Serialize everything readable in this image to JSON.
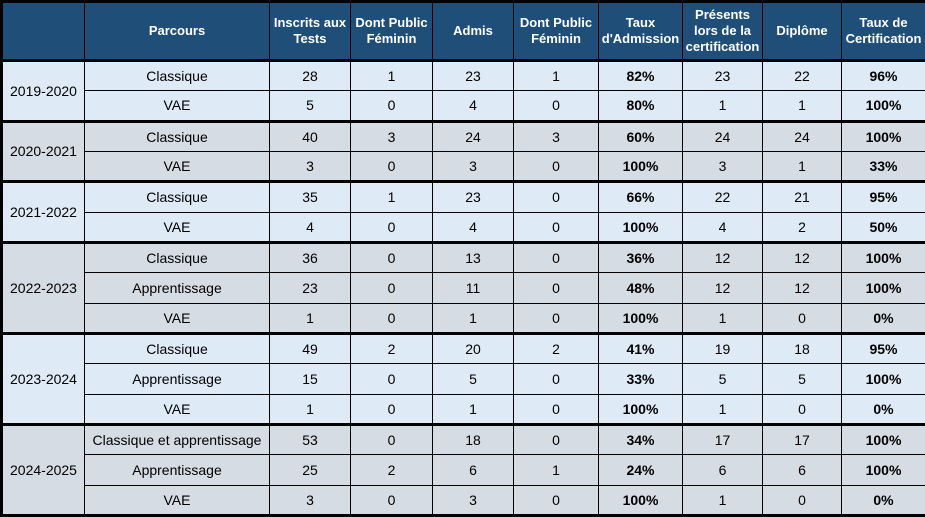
{
  "colors": {
    "header_bg": "#1F4E79",
    "header_fg": "#FFFFFF",
    "row_light_blue": "#DEEAF6",
    "row_blue_gray": "#D6DCE4",
    "border": "#000000"
  },
  "chart_data": {
    "type": "table",
    "columns": [
      "",
      "Parcours",
      "Inscrits aux Tests",
      "Dont Public Féminin",
      "Admis",
      "Dont Public Féminin",
      "Taux d'Admission",
      "Présents lors de la certification",
      "Diplôme",
      "Taux de Certification"
    ],
    "groups": [
      {
        "year": "2019-2020",
        "rows": [
          [
            "Classique",
            "28",
            "1",
            "23",
            "1",
            "82%",
            "23",
            "22",
            "96%"
          ],
          [
            "VAE",
            "5",
            "0",
            "4",
            "0",
            "80%",
            "1",
            "1",
            "100%"
          ]
        ]
      },
      {
        "year": "2020-2021",
        "rows": [
          [
            "Classique",
            "40",
            "3",
            "24",
            "3",
            "60%",
            "24",
            "24",
            "100%"
          ],
          [
            "VAE",
            "3",
            "0",
            "3",
            "0",
            "100%",
            "3",
            "1",
            "33%"
          ]
        ]
      },
      {
        "year": "2021-2022",
        "rows": [
          [
            "Classique",
            "35",
            "1",
            "23",
            "0",
            "66%",
            "22",
            "21",
            "95%"
          ],
          [
            "VAE",
            "4",
            "0",
            "4",
            "0",
            "100%",
            "4",
            "2",
            "50%"
          ]
        ]
      },
      {
        "year": "2022-2023",
        "rows": [
          [
            "Classique",
            "36",
            "0",
            "13",
            "0",
            "36%",
            "12",
            "12",
            "100%"
          ],
          [
            "Apprentissage",
            "23",
            "0",
            "11",
            "0",
            "48%",
            "12",
            "12",
            "100%"
          ],
          [
            "VAE",
            "1",
            "0",
            "1",
            "0",
            "100%",
            "1",
            "0",
            "0%"
          ]
        ]
      },
      {
        "year": "2023-2024",
        "rows": [
          [
            "Classique",
            "49",
            "2",
            "20",
            "2",
            "41%",
            "19",
            "18",
            "95%"
          ],
          [
            "Apprentissage",
            "15",
            "0",
            "5",
            "0",
            "33%",
            "5",
            "5",
            "100%"
          ],
          [
            "VAE",
            "1",
            "0",
            "1",
            "0",
            "100%",
            "1",
            "0",
            "0%"
          ]
        ]
      },
      {
        "year": "2024-2025",
        "rows": [
          [
            "Classique et apprentissage",
            "53",
            "0",
            "18",
            "0",
            "34%",
            "17",
            "17",
            "100%"
          ],
          [
            "Apprentissage",
            "25",
            "2",
            "6",
            "1",
            "24%",
            "6",
            "6",
            "100%"
          ],
          [
            "VAE",
            "3",
            "0",
            "3",
            "0",
            "100%",
            "1",
            "0",
            "0%"
          ]
        ]
      }
    ]
  }
}
